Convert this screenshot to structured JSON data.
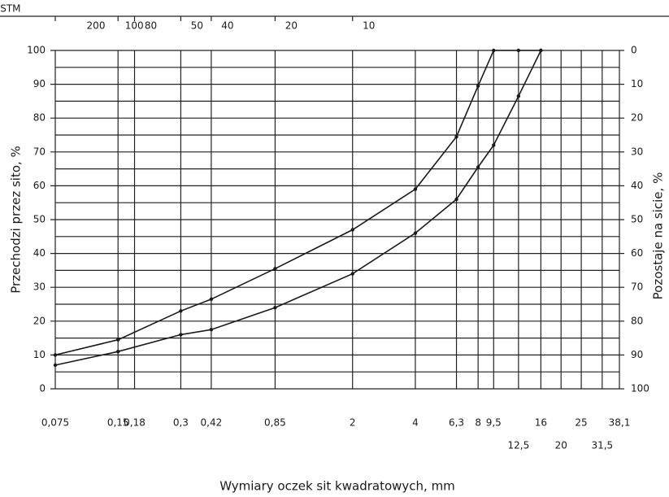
{
  "chart_data": {
    "type": "line",
    "top_axis_label": "ASTM",
    "top_ticks": [
      {
        "value": 0.075,
        "label": "200"
      },
      {
        "value": 0.15,
        "label": "100"
      },
      {
        "value": 0.18,
        "label": "80"
      },
      {
        "value": 0.3,
        "label": "50"
      },
      {
        "value": 0.42,
        "label": "40"
      },
      {
        "value": 0.85,
        "label": "20"
      },
      {
        "value": 2,
        "label": "10"
      }
    ],
    "xlabel": "Wymiary oczek sit kwadratowych, mm",
    "ylabel": "Przechodzi przez sito, %",
    "y2label": "Pozostaje na sicie, %",
    "xscale": "log",
    "xlim": [
      0.075,
      38.1
    ],
    "xticks": [
      {
        "value": 0.075,
        "label": "0,075"
      },
      {
        "value": 0.15,
        "label": "0,15"
      },
      {
        "value": 0.18,
        "label": "0,18"
      },
      {
        "value": 0.3,
        "label": "0,3"
      },
      {
        "value": 0.42,
        "label": "0,42"
      },
      {
        "value": 0.85,
        "label": "0,85"
      },
      2,
      4,
      {
        "value": 6.3,
        "label": "6,3"
      },
      8,
      {
        "value": 9.5,
        "label": "9,5"
      },
      16,
      25,
      {
        "value": 38.1,
        "label": "38,1"
      }
    ],
    "xticks_second_row": [
      {
        "value": 12.5,
        "label": "12,5"
      },
      20,
      {
        "value": 31.5,
        "label": "31,5"
      }
    ],
    "ylim": [
      0,
      100
    ],
    "yticks": [
      0,
      10,
      20,
      30,
      40,
      50,
      60,
      70,
      80,
      90,
      100
    ],
    "yticks_minor": [
      5,
      15,
      25,
      35,
      45,
      55,
      65,
      75,
      85,
      95
    ],
    "y2lim": [
      100,
      0
    ],
    "y2ticks": [
      0,
      10,
      20,
      30,
      40,
      50,
      60,
      70,
      80,
      90,
      100
    ],
    "grid": true,
    "series": [
      {
        "color": "#1a1a1a",
        "x": [
          0.075,
          0.15,
          0.3,
          0.42,
          0.85,
          2,
          4,
          6.3,
          8,
          9.5,
          12.5,
          16
        ],
        "values": [
          10,
          14.5,
          23,
          26.5,
          35.5,
          47,
          59,
          74.5,
          89.5,
          100,
          100,
          100
        ]
      },
      {
        "color": "#1a1a1a",
        "x": [
          0.075,
          0.15,
          0.3,
          0.42,
          0.85,
          2,
          4,
          6.3,
          8,
          9.5,
          12.5,
          16
        ],
        "values": [
          7,
          11,
          16,
          17.5,
          24,
          34,
          46,
          56,
          65.5,
          72,
          86.5,
          100
        ]
      }
    ]
  }
}
